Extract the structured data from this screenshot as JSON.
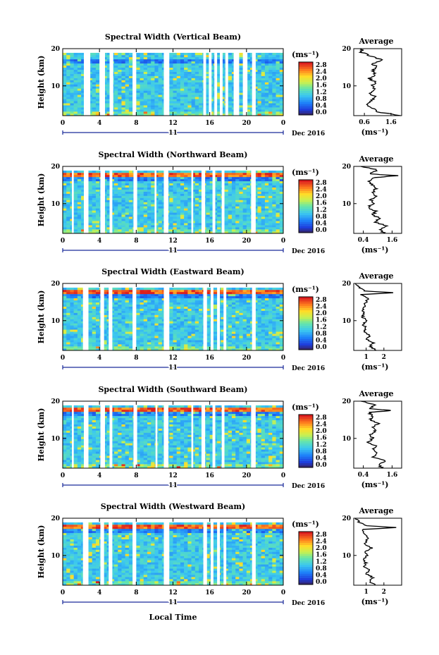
{
  "figure": {
    "xlabel": "Local Time",
    "day_label": "11",
    "date_label": "Dec 2016",
    "avg_title": "Average",
    "unit_label": "(ms⁻¹)"
  },
  "chart_data": [
    {
      "type": "heatmap",
      "title": "Spectral Width (Vertical Beam)",
      "ylabel": "Height (km)",
      "xlim": [
        0,
        24
      ],
      "ylim": [
        2,
        20
      ],
      "x_ticks": [
        "0",
        "4",
        "8",
        "12",
        "16",
        "20",
        "0"
      ],
      "y_ticks": [
        "10",
        "20"
      ],
      "colorbar": {
        "ticks": [
          "0.0",
          "0.4",
          "0.8",
          "1.2",
          "1.6",
          "2.0",
          "2.4",
          "2.8"
        ]
      },
      "gaps": [
        [
          2.3,
          3.0
        ],
        [
          4.0,
          4.6
        ],
        [
          5.1,
          5.5
        ],
        [
          7.6,
          8.0
        ],
        [
          11.0,
          11.6
        ],
        [
          15.3,
          15.6
        ],
        [
          15.9,
          16.2
        ],
        [
          16.5,
          16.8
        ],
        [
          17.1,
          17.4
        ],
        [
          17.7,
          18.0
        ],
        [
          18.6,
          19.2
        ],
        [
          19.6,
          20.1
        ],
        [
          20.6,
          21.0
        ]
      ],
      "average": {
        "xlabel": "(ms⁻¹)",
        "x_ticks": [
          "0.6",
          "1.6"
        ],
        "xlim": [
          0.2,
          2.0
        ],
        "profile": [
          [
            2,
            2.0
          ],
          [
            3,
            1.1
          ],
          [
            4,
            0.9
          ],
          [
            5,
            0.7
          ],
          [
            6,
            0.9
          ],
          [
            7,
            1.0
          ],
          [
            8,
            0.8
          ],
          [
            9,
            1.0
          ],
          [
            10,
            0.9
          ],
          [
            11,
            1.0
          ],
          [
            12,
            0.8
          ],
          [
            13,
            1.0
          ],
          [
            14,
            0.9
          ],
          [
            15,
            1.1
          ],
          [
            16,
            0.9
          ],
          [
            17,
            1.3
          ],
          [
            18,
            0.8
          ],
          [
            19,
            0.5
          ],
          [
            20,
            0.5
          ]
        ]
      }
    },
    {
      "type": "heatmap",
      "title": "Spectral Width (Northward Beam)",
      "ylabel": "Height (km)",
      "xlim": [
        0,
        24
      ],
      "ylim": [
        2,
        20
      ],
      "x_ticks": [
        "0",
        "4",
        "8",
        "12",
        "16",
        "20",
        "0"
      ],
      "y_ticks": [
        "10",
        "20"
      ],
      "colorbar": {
        "ticks": [
          "0.0",
          "0.4",
          "0.8",
          "1.2",
          "1.6",
          "2.0",
          "2.4",
          "2.8"
        ]
      },
      "gaps": [
        [
          1.0,
          1.2
        ],
        [
          2.3,
          2.8
        ],
        [
          4.1,
          4.6
        ],
        [
          5.1,
          5.4
        ],
        [
          7.7,
          8.1
        ],
        [
          10.0,
          10.2
        ],
        [
          11.0,
          11.5
        ],
        [
          14.0,
          14.2
        ],
        [
          15.1,
          15.5
        ],
        [
          16.3,
          16.6
        ],
        [
          17.3,
          17.6
        ],
        [
          20.5,
          21.0
        ]
      ],
      "average": {
        "xlabel": "(ms⁻¹)",
        "x_ticks": [
          "0.4",
          "1.6"
        ],
        "xlim": [
          0.0,
          2.0
        ],
        "profile": [
          [
            2,
            1.3
          ],
          [
            3,
            1.1
          ],
          [
            4,
            1.4
          ],
          [
            5,
            0.9
          ],
          [
            6,
            1.1
          ],
          [
            7,
            0.8
          ],
          [
            8,
            0.9
          ],
          [
            9,
            0.6
          ],
          [
            10,
            0.8
          ],
          [
            11,
            0.7
          ],
          [
            12,
            0.9
          ],
          [
            13,
            0.8
          ],
          [
            14,
            0.9
          ],
          [
            15,
            0.8
          ],
          [
            16,
            0.6
          ],
          [
            17,
            0.9
          ],
          [
            17.5,
            1.8
          ],
          [
            18,
            0.7
          ],
          [
            19,
            1.0
          ],
          [
            20,
            0.3
          ]
        ]
      }
    },
    {
      "type": "heatmap",
      "title": "Spectral Width (Eastward Beam)",
      "ylabel": "Height (km)",
      "xlim": [
        0,
        24
      ],
      "ylim": [
        2,
        20
      ],
      "x_ticks": [
        "0",
        "4",
        "8",
        "12",
        "16",
        "20",
        "0"
      ],
      "y_ticks": [
        "10",
        "20"
      ],
      "colorbar": {
        "ticks": [
          "0.0",
          "0.4",
          "0.8",
          "1.2",
          "1.6",
          "2.0",
          "2.4",
          "2.8"
        ]
      },
      "gaps": [
        [
          2.2,
          2.8
        ],
        [
          4.1,
          4.5
        ],
        [
          5.0,
          5.4
        ],
        [
          7.6,
          8.0
        ],
        [
          11.0,
          11.6
        ],
        [
          15.3,
          15.7
        ],
        [
          16.1,
          16.4
        ],
        [
          16.8,
          17.1
        ],
        [
          17.5,
          17.8
        ],
        [
          20.6,
          21.0
        ]
      ],
      "average": {
        "xlabel": "(ms⁻¹)",
        "x_ticks": [
          "1",
          "2"
        ],
        "xlim": [
          0.3,
          3.0
        ],
        "profile": [
          [
            2,
            1.6
          ],
          [
            3,
            1.2
          ],
          [
            4,
            1.4
          ],
          [
            5,
            1.0
          ],
          [
            6,
            1.2
          ],
          [
            7,
            0.9
          ],
          [
            8,
            1.0
          ],
          [
            9,
            0.8
          ],
          [
            10,
            1.0
          ],
          [
            11,
            0.8
          ],
          [
            12,
            0.9
          ],
          [
            13,
            0.8
          ],
          [
            14,
            0.9
          ],
          [
            15,
            1.0
          ],
          [
            16,
            1.1
          ],
          [
            17,
            0.7
          ],
          [
            17.5,
            2.6
          ],
          [
            18,
            0.9
          ],
          [
            19,
            0.6
          ],
          [
            20,
            0.4
          ]
        ]
      }
    },
    {
      "type": "heatmap",
      "title": "Spectral Width (Southward Beam)",
      "ylabel": "Height (km)",
      "xlim": [
        0,
        24
      ],
      "ylim": [
        2,
        20
      ],
      "x_ticks": [
        "0",
        "4",
        "8",
        "12",
        "16",
        "20",
        "0"
      ],
      "y_ticks": [
        "10",
        "20"
      ],
      "colorbar": {
        "ticks": [
          "0.0",
          "0.4",
          "0.8",
          "1.2",
          "1.6",
          "2.0",
          "2.4",
          "2.8"
        ]
      },
      "gaps": [
        [
          1.0,
          1.2
        ],
        [
          2.3,
          2.8
        ],
        [
          4.1,
          4.6
        ],
        [
          5.1,
          5.4
        ],
        [
          7.7,
          8.1
        ],
        [
          10.1,
          10.3
        ],
        [
          11.0,
          11.5
        ],
        [
          14.0,
          14.2
        ],
        [
          15.1,
          15.5
        ],
        [
          16.3,
          16.6
        ],
        [
          17.3,
          17.6
        ],
        [
          20.5,
          21.0
        ]
      ],
      "average": {
        "xlabel": "(ms⁻¹)",
        "x_ticks": [
          "0.4",
          "1.6"
        ],
        "xlim": [
          0.0,
          2.0
        ],
        "profile": [
          [
            2,
            1.2
          ],
          [
            3,
            1.0
          ],
          [
            4,
            1.3
          ],
          [
            5,
            0.8
          ],
          [
            6,
            1.0
          ],
          [
            7,
            0.8
          ],
          [
            8,
            0.9
          ],
          [
            9,
            0.6
          ],
          [
            10,
            0.8
          ],
          [
            11,
            0.7
          ],
          [
            12,
            0.9
          ],
          [
            13,
            0.8
          ],
          [
            14,
            1.0
          ],
          [
            15,
            0.7
          ],
          [
            16,
            0.8
          ],
          [
            17,
            0.6
          ],
          [
            17.5,
            1.6
          ],
          [
            18,
            0.7
          ],
          [
            19,
            0.9
          ],
          [
            20,
            0.3
          ]
        ]
      }
    },
    {
      "type": "heatmap",
      "title": "Spectral Width (Westward Beam)",
      "ylabel": "Height (km)",
      "xlim": [
        0,
        24
      ],
      "ylim": [
        2,
        20
      ],
      "x_ticks": [
        "0",
        "4",
        "8",
        "12",
        "16",
        "20",
        "0"
      ],
      "y_ticks": [
        "10",
        "20"
      ],
      "colorbar": {
        "ticks": [
          "0.0",
          "0.4",
          "0.8",
          "1.2",
          "1.6",
          "2.0",
          "2.4",
          "2.8"
        ]
      },
      "gaps": [
        [
          2.2,
          2.8
        ],
        [
          4.1,
          4.5
        ],
        [
          5.0,
          5.4
        ],
        [
          7.6,
          8.0
        ],
        [
          11.0,
          11.6
        ],
        [
          15.3,
          15.7
        ],
        [
          16.1,
          16.4
        ],
        [
          16.8,
          17.1
        ],
        [
          17.5,
          17.8
        ],
        [
          20.6,
          21.0
        ]
      ],
      "average": {
        "xlabel": "(ms⁻¹)",
        "x_ticks": [
          "1",
          "2"
        ],
        "xlim": [
          0.3,
          3.0
        ],
        "profile": [
          [
            2,
            1.5
          ],
          [
            3,
            1.2
          ],
          [
            4,
            1.4
          ],
          [
            5,
            1.0
          ],
          [
            6,
            1.2
          ],
          [
            7,
            0.9
          ],
          [
            8,
            1.0
          ],
          [
            9,
            0.8
          ],
          [
            10,
            1.1
          ],
          [
            11,
            0.9
          ],
          [
            12,
            1.3
          ],
          [
            13,
            0.9
          ],
          [
            14,
            1.0
          ],
          [
            15,
            1.1
          ],
          [
            16,
            0.9
          ],
          [
            17,
            0.8
          ],
          [
            17.5,
            2.7
          ],
          [
            18,
            1.0
          ],
          [
            19,
            0.6
          ],
          [
            20,
            0.4
          ]
        ]
      }
    }
  ]
}
